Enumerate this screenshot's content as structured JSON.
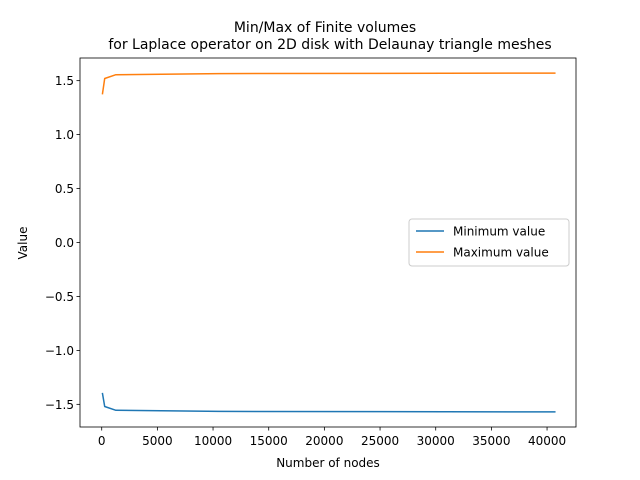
{
  "chart_data": {
    "type": "line",
    "title": "Min/Max of Finite volumes",
    "subtitle": "for Laplace operator on 2D disk with Delaunay triangle meshes",
    "xlabel": "Number of nodes",
    "ylabel": "Value",
    "xlim": [
      -1950,
      42600
    ],
    "ylim": [
      -1.71,
      1.71
    ],
    "xticks": [
      0,
      5000,
      10000,
      15000,
      20000,
      25000,
      30000,
      35000,
      40000
    ],
    "yticks": [
      -1.5,
      -1.0,
      -0.5,
      0.0,
      0.5,
      1.0,
      1.5
    ],
    "xtick_labels": [
      "0",
      "5000",
      "10000",
      "15000",
      "20000",
      "25000",
      "30000",
      "35000",
      "40000"
    ],
    "ytick_labels": [
      "−1.5",
      "−1.0",
      "−0.5",
      "0.0",
      "0.5",
      "1.0",
      "1.5"
    ],
    "grid": false,
    "legend_position": "center-right",
    "series": [
      {
        "name": "Minimum value",
        "color": "#1f77b4",
        "x": [
          70,
          270,
          1270,
          10500,
          40700
        ],
        "y": [
          -1.4,
          -1.52,
          -1.555,
          -1.565,
          -1.57
        ]
      },
      {
        "name": "Maximum value",
        "color": "#ff7f0e",
        "x": [
          70,
          270,
          1270,
          10500,
          40700
        ],
        "y": [
          1.38,
          1.52,
          1.555,
          1.565,
          1.57
        ]
      }
    ]
  }
}
